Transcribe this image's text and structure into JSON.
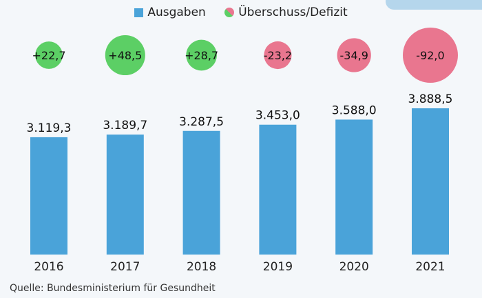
{
  "chart_data": {
    "type": "bar",
    "categories": [
      "2016",
      "2017",
      "2018",
      "2019",
      "2020",
      "2021"
    ],
    "series": [
      {
        "name": "Ausgaben",
        "values": [
          3119.3,
          3189.7,
          3287.5,
          3453.0,
          3588.0,
          3888.5
        ],
        "labels": [
          "3.119,3",
          "3.189,7",
          "3.287,5",
          "3.453,0",
          "3.588,0",
          "3.888,5"
        ],
        "color": "#4aa3d9"
      },
      {
        "name": "Überschuss/Defizit",
        "values": [
          22.7,
          48.5,
          28.7,
          -23.2,
          -34.9,
          -92.0
        ],
        "labels": [
          "+22,7",
          "+48,5",
          "+28,7",
          "-23,2",
          "-34,9",
          "-92,0"
        ],
        "positive_color": "#5ccf65",
        "negative_color": "#e9768f",
        "mark": "bubble"
      }
    ],
    "ylim": [
      0,
      3888.5
    ],
    "grid": false,
    "legend_position": "top"
  },
  "legend": {
    "items": [
      "Ausgaben",
      "Überschuss/Defizit"
    ]
  },
  "source": "Quelle: Bundesministerium für Gesundheit"
}
